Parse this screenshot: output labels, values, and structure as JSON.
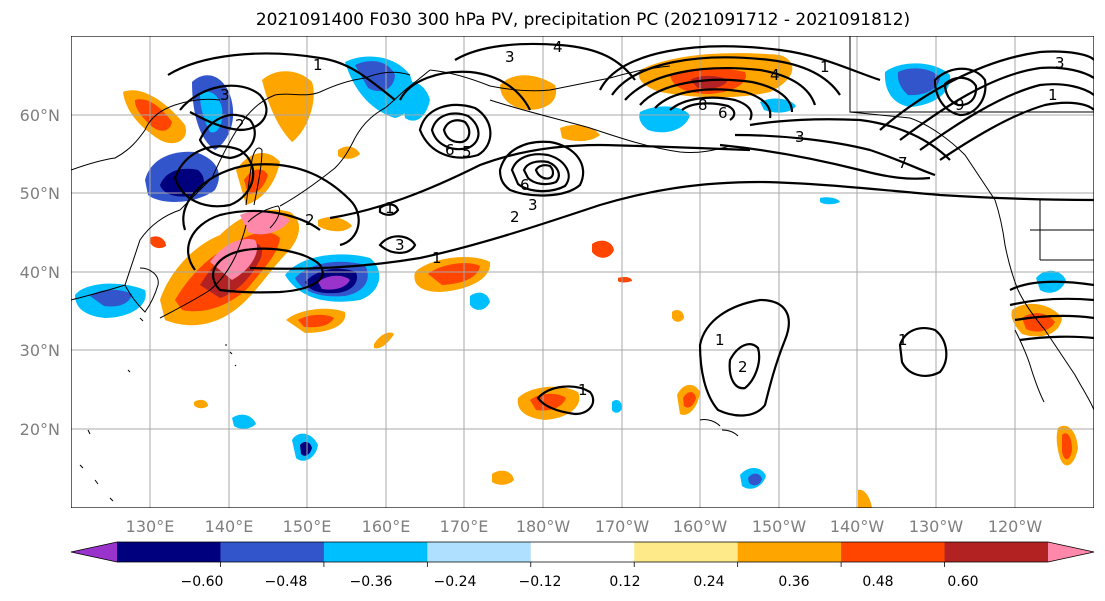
{
  "title": "2021091400 F030 300 hPa PV, precipitation PC (2021091712 - 2021091812)",
  "lat_labels": [
    "60°N",
    "50°N",
    "40°N",
    "30°N",
    "20°N"
  ],
  "lon_labels": [
    "130°E",
    "140°E",
    "150°E",
    "160°E",
    "170°E",
    "180°W",
    "170°W",
    "160°W",
    "150°W",
    "140°W",
    "130°W",
    "120°W"
  ],
  "colorbar": {
    "ticks": [
      "−0.60",
      "−0.48",
      "−0.36",
      "−0.24",
      "−0.12",
      "0.12",
      "0.24",
      "0.36",
      "0.48",
      "0.60"
    ],
    "colors": [
      "#9933cc",
      "#00007f",
      "#3355cc",
      "#00bfff",
      "#b0e0ff",
      "#ffffff",
      "#ffea8a",
      "#ffa500",
      "#ff4500",
      "#b22222",
      "#ff88aa"
    ]
  },
  "pv_contour_labels": [
    "1",
    "2",
    "3",
    "4",
    "5",
    "6",
    "7",
    "8",
    "9"
  ]
}
